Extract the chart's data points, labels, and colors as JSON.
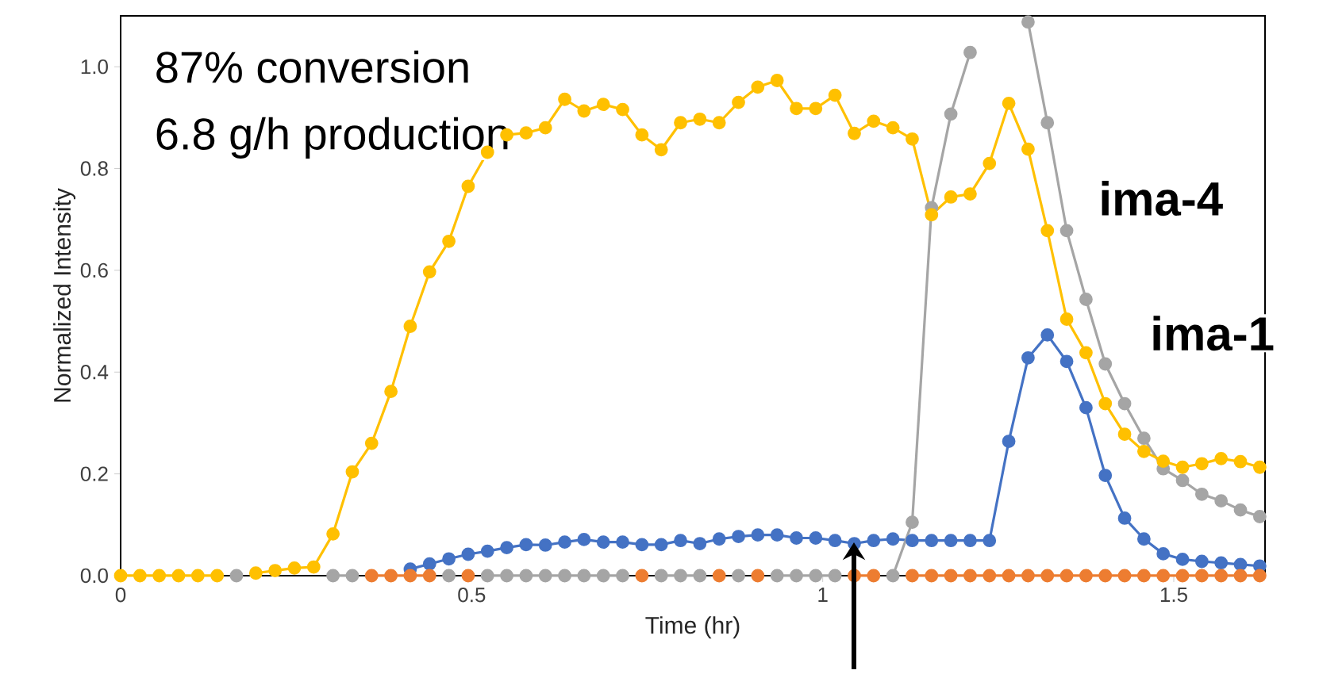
{
  "chart_data": {
    "type": "line",
    "xlabel": "Time (hr)",
    "ylabel": "Normalized Intensity",
    "x": [
      0,
      0.0275,
      0.055,
      0.0825,
      0.11,
      0.1375,
      0.165,
      0.1925,
      0.22,
      0.2475,
      0.275,
      0.3025,
      0.33,
      0.3575,
      0.385,
      0.4125,
      0.44,
      0.4675,
      0.495,
      0.5225,
      0.55,
      0.5775,
      0.605,
      0.6325,
      0.66,
      0.6875,
      0.715,
      0.7425,
      0.77,
      0.7975,
      0.825,
      0.8525,
      0.88,
      0.9075,
      0.935,
      0.9625,
      0.99,
      1.0175,
      1.045,
      1.0725,
      1.1,
      1.1275,
      1.155,
      1.1825,
      1.21,
      1.2375,
      1.265,
      1.2925,
      1.32,
      1.3475,
      1.375,
      1.4025,
      1.43,
      1.4575,
      1.485,
      1.5125,
      1.54,
      1.5675,
      1.595,
      1.6225
    ],
    "series": [
      {
        "color": "#4472c4",
        "values": [
          null,
          null,
          null,
          null,
          null,
          null,
          null,
          null,
          null,
          null,
          null,
          null,
          null,
          null,
          null,
          0.013,
          0.023,
          0.033,
          0.042,
          0.048,
          0.055,
          0.061,
          0.06,
          0.066,
          0.071,
          0.066,
          0.066,
          0.061,
          0.061,
          0.069,
          0.063,
          0.072,
          0.077,
          0.08,
          0.08,
          0.074,
          0.074,
          0.069,
          0.063,
          0.069,
          0.072,
          0.069,
          0.069,
          0.069,
          0.069,
          0.069,
          0.264,
          0.428,
          0.473,
          0.421,
          0.33,
          0.197,
          0.113,
          0.072,
          0.043,
          0.032,
          0.028,
          0.025,
          0.022,
          0.019
        ]
      },
      {
        "color": "#a5a5a5",
        "values": [
          null,
          null,
          null,
          null,
          null,
          null,
          0,
          null,
          null,
          null,
          null,
          0,
          0,
          null,
          null,
          null,
          null,
          0,
          null,
          0,
          0,
          0,
          0,
          0,
          0,
          0,
          0,
          null,
          0,
          0,
          0,
          null,
          0,
          null,
          0,
          0,
          0,
          0,
          null,
          null,
          0,
          0.105,
          0.723,
          0.907,
          1.028,
          null,
          null,
          1.088,
          0.89,
          0.678,
          0.543,
          0.416,
          0.338,
          0.27,
          0.21,
          0.187,
          0.16,
          0.147,
          0.129,
          0.116
        ]
      },
      {
        "color": "#ed7d31",
        "values": [
          null,
          null,
          null,
          null,
          null,
          null,
          null,
          null,
          null,
          null,
          null,
          null,
          null,
          0,
          0,
          0,
          0,
          null,
          0,
          null,
          null,
          null,
          null,
          null,
          null,
          null,
          null,
          0,
          null,
          null,
          null,
          0,
          null,
          0,
          null,
          null,
          null,
          null,
          0,
          0,
          null,
          0,
          0,
          0,
          0,
          0,
          0,
          0,
          0,
          0,
          0,
          0,
          0,
          0,
          0,
          0,
          0,
          0,
          0,
          0
        ]
      },
      {
        "color": "#ffc000",
        "values": [
          0,
          0,
          0,
          0,
          0,
          0,
          null,
          0.005,
          0.01,
          0.015,
          0.017,
          0.082,
          0.204,
          0.26,
          0.362,
          0.49,
          0.597,
          0.657,
          0.765,
          0.832,
          0.866,
          0.87,
          0.88,
          0.936,
          0.913,
          0.926,
          0.916,
          0.866,
          0.837,
          0.89,
          0.897,
          0.89,
          0.93,
          0.96,
          0.973,
          0.918,
          0.918,
          0.944,
          0.869,
          0.893,
          0.88,
          0.858,
          0.709,
          0.744,
          0.75,
          0.81,
          0.928,
          0.838,
          0.678,
          0.504,
          0.438,
          0.338,
          0.278,
          0.244,
          0.225,
          0.213,
          0.22,
          0.23,
          0.224,
          0.213
        ]
      }
    ],
    "xlim": [
      0,
      1.63
    ],
    "ylim": [
      0,
      1.1
    ],
    "xticks": [
      0,
      0.5,
      1,
      1.5
    ],
    "yticks": [
      {
        "value": 0,
        "label": "0.0"
      },
      {
        "value": 0.2,
        "label": "0.2"
      },
      {
        "value": 0.4,
        "label": "0.4"
      },
      {
        "value": 0.6,
        "label": "0.6"
      },
      {
        "value": 0.8,
        "label": "0.8"
      },
      {
        "value": 1.0,
        "label": "1.0"
      }
    ],
    "marker": "circle",
    "line_style": "solid",
    "grid": false,
    "annotations": [
      "87% conversion",
      "6.8 g/h production",
      "ima-4",
      "ima-1"
    ]
  }
}
